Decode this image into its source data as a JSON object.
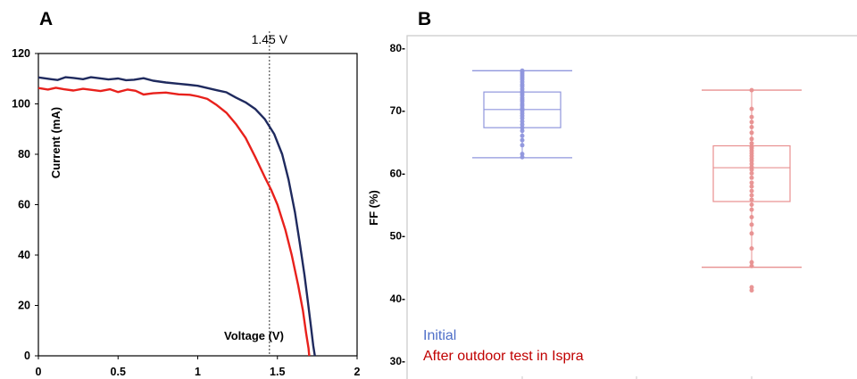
{
  "panels": {
    "a": {
      "label": "A"
    },
    "b": {
      "label": "B"
    }
  },
  "chart_data": [
    {
      "type": "line",
      "panel": "A",
      "title": "",
      "xlabel": "Voltage (V)",
      "ylabel": "Current (mA)",
      "xlim": [
        0,
        2
      ],
      "ylim": [
        0,
        120
      ],
      "xticks": [
        "0",
        "0.5",
        "1",
        "1.5",
        "2"
      ],
      "yticks": [
        "0",
        "20",
        "40",
        "60",
        "80",
        "100",
        "120"
      ],
      "annotation": {
        "text": "1.45 V",
        "x": 1.45
      },
      "series": [
        {
          "color": "#1f2a5e",
          "points": [
            [
              0,
              110.5
            ],
            [
              0.08,
              109.8
            ],
            [
              0.12,
              109.5
            ],
            [
              0.17,
              110.6
            ],
            [
              0.22,
              110.3
            ],
            [
              0.28,
              109.8
            ],
            [
              0.33,
              110.6
            ],
            [
              0.38,
              110.2
            ],
            [
              0.44,
              109.7
            ],
            [
              0.5,
              110.1
            ],
            [
              0.55,
              109.4
            ],
            [
              0.6,
              109.6
            ],
            [
              0.66,
              110.2
            ],
            [
              0.72,
              109.2
            ],
            [
              0.8,
              108.5
            ],
            [
              0.88,
              108.0
            ],
            [
              0.94,
              107.6
            ],
            [
              1.0,
              107.2
            ],
            [
              1.06,
              106.3
            ],
            [
              1.12,
              105.4
            ],
            [
              1.18,
              104.6
            ],
            [
              1.24,
              102.5
            ],
            [
              1.3,
              100.6
            ],
            [
              1.36,
              98.0
            ],
            [
              1.42,
              94.0
            ],
            [
              1.48,
              88.0
            ],
            [
              1.53,
              80.0
            ],
            [
              1.57,
              70.0
            ],
            [
              1.61,
              57.0
            ],
            [
              1.64,
              45.0
            ],
            [
              1.67,
              32.0
            ],
            [
              1.69,
              22.0
            ],
            [
              1.71,
              12.0
            ],
            [
              1.725,
              4.0
            ],
            [
              1.735,
              0.0
            ]
          ]
        },
        {
          "color": "#e8211c",
          "points": [
            [
              0,
              106.3
            ],
            [
              0.06,
              105.7
            ],
            [
              0.11,
              106.4
            ],
            [
              0.16,
              105.8
            ],
            [
              0.22,
              105.3
            ],
            [
              0.28,
              106.0
            ],
            [
              0.33,
              105.6
            ],
            [
              0.39,
              105.1
            ],
            [
              0.45,
              105.8
            ],
            [
              0.5,
              104.7
            ],
            [
              0.56,
              105.7
            ],
            [
              0.61,
              105.2
            ],
            [
              0.66,
              103.7
            ],
            [
              0.72,
              104.2
            ],
            [
              0.8,
              104.5
            ],
            [
              0.88,
              103.8
            ],
            [
              0.95,
              103.6
            ],
            [
              1.0,
              103.0
            ],
            [
              1.06,
              102.0
            ],
            [
              1.12,
              99.5
            ],
            [
              1.18,
              96.5
            ],
            [
              1.24,
              92.0
            ],
            [
              1.3,
              86.5
            ],
            [
              1.36,
              79.0
            ],
            [
              1.42,
              71.0
            ],
            [
              1.46,
              66.0
            ],
            [
              1.5,
              60.0
            ],
            [
              1.55,
              50.0
            ],
            [
              1.59,
              40.0
            ],
            [
              1.63,
              28.0
            ],
            [
              1.66,
              18.0
            ],
            [
              1.68,
              9.0
            ],
            [
              1.695,
              3.0
            ],
            [
              1.7,
              0.0
            ]
          ]
        }
      ]
    },
    {
      "type": "box",
      "panel": "B",
      "title": "",
      "ylabel": "FF (%)",
      "ylim": [
        27,
        82
      ],
      "yticks": [
        "30-",
        "40-",
        "50-",
        "60-",
        "70-",
        "80-"
      ],
      "legend": [
        {
          "name": "Initial",
          "color": "#4f6fc8"
        },
        {
          "name": "After outdoor test in Ispra",
          "color": "#c00000"
        }
      ],
      "groups": [
        {
          "name": "Initial",
          "color": "#8f96dd",
          "min": 62.5,
          "q1": 67.3,
          "median": 70.2,
          "q3": 73.0,
          "max": 76.4,
          "points": [
            62.6,
            63.1,
            64.5,
            65.3,
            66.0,
            66.8,
            67.3,
            67.8,
            68.3,
            68.8,
            69.2,
            69.6,
            70.0,
            70.2,
            70.4,
            70.8,
            71.1,
            71.5,
            71.8,
            72.1,
            72.5,
            72.8,
            73.1,
            73.5,
            73.9,
            74.2,
            74.6,
            75.0,
            75.3,
            75.6,
            75.9,
            76.2,
            76.4
          ]
        },
        {
          "name": "After outdoor test in Ispra",
          "color": "#e89090",
          "min": 45.0,
          "q1": 55.5,
          "median": 60.9,
          "q3": 64.4,
          "max": 73.3,
          "points": [
            41.3,
            41.8,
            45.2,
            45.8,
            48.0,
            50.4,
            51.8,
            53.0,
            54.2,
            55.0,
            55.8,
            56.5,
            57.2,
            57.9,
            58.5,
            59.3,
            60.0,
            60.6,
            61.0,
            61.5,
            62.0,
            62.4,
            62.8,
            63.2,
            63.6,
            64.0,
            64.3,
            64.8,
            65.5,
            66.5,
            67.4,
            68.2,
            69.0,
            70.3,
            73.3
          ]
        }
      ]
    }
  ]
}
